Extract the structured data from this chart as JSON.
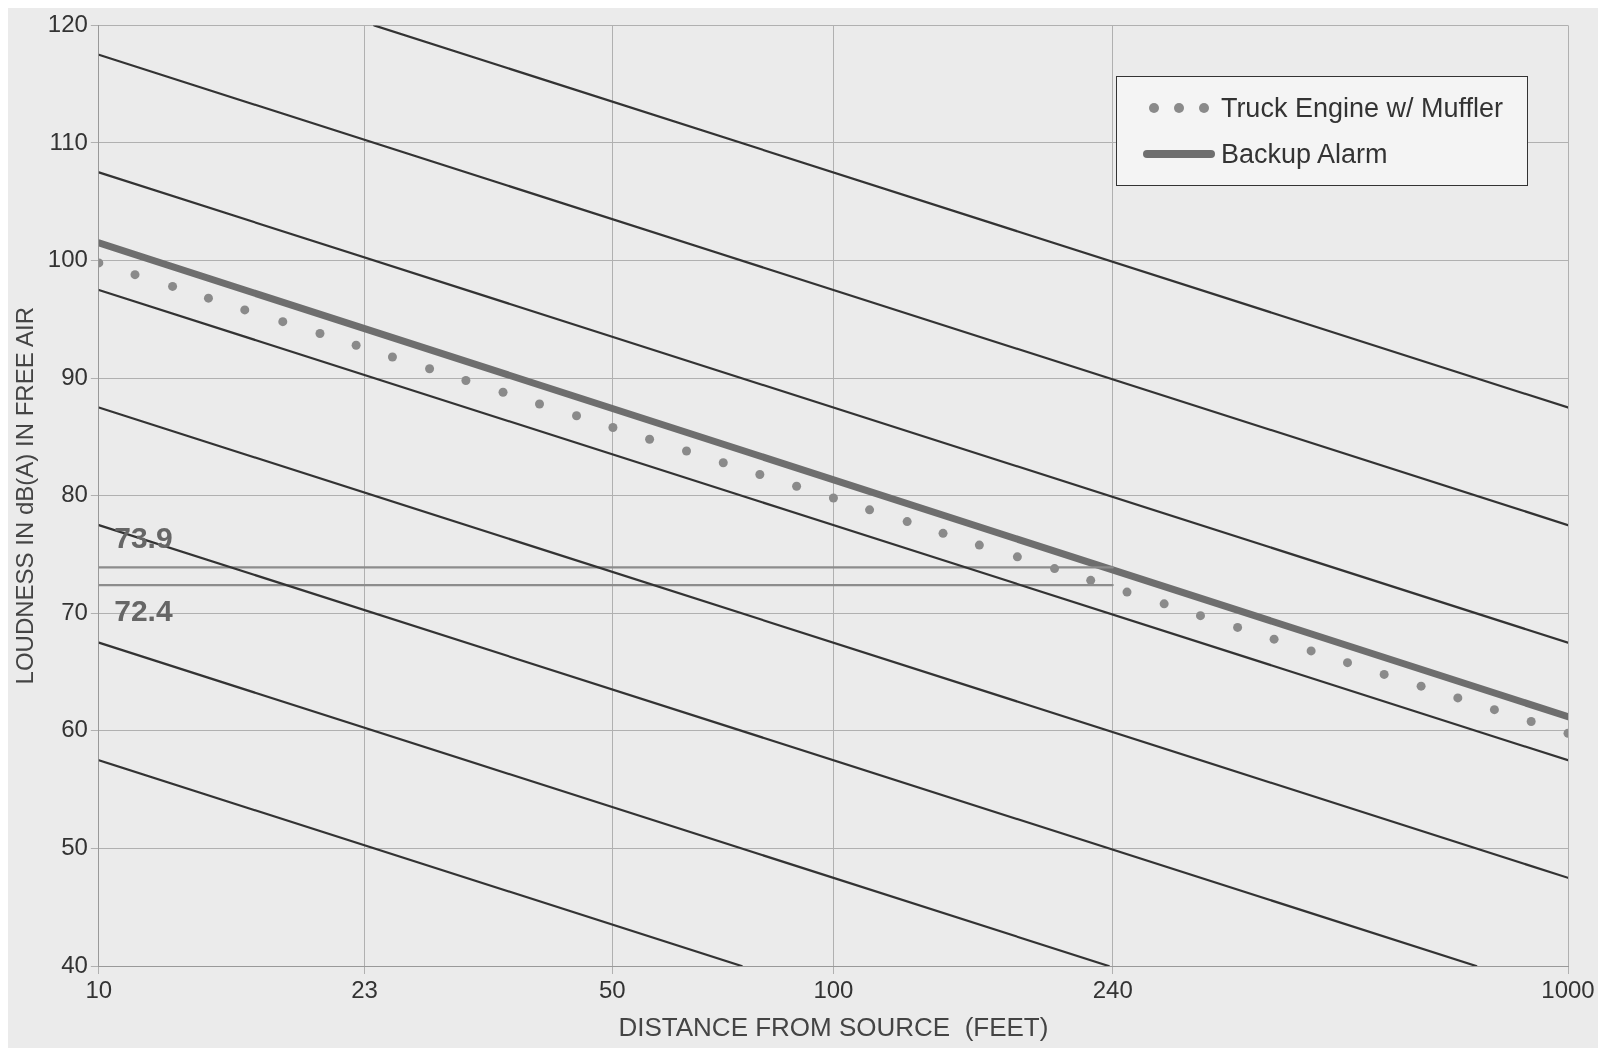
{
  "chart_data": {
    "type": "line",
    "xlabel": "DISTANCE FROM SOURCE  (FEET)",
    "ylabel": "LOUDNESS IN dB(A) IN FREE AIR",
    "log": "x",
    "grid": true,
    "legend": "top right",
    "xlim": [
      10,
      1000
    ],
    "xticks": [
      10,
      23,
      50,
      100,
      240,
      1000
    ],
    "ylim": [
      40,
      120
    ],
    "yticks": [
      40,
      50,
      60,
      70,
      80,
      90,
      100,
      110,
      120
    ],
    "series": [
      {
        "type": "line",
        "color": "#333333",
        "x": [
          23.7,
          1000
        ],
        "values": [
          120,
          87.5
        ]
      },
      {
        "type": "line",
        "color": "#333333",
        "x": [
          10,
          1000
        ],
        "values": [
          117.5,
          77.5
        ]
      },
      {
        "type": "line",
        "color": "#333333",
        "x": [
          10,
          1000
        ],
        "values": [
          107.5,
          67.5
        ]
      },
      {
        "type": "line",
        "color": "#333333",
        "x": [
          10,
          1000
        ],
        "values": [
          97.5,
          57.5
        ]
      },
      {
        "type": "line",
        "color": "#333333",
        "x": [
          10,
          1000
        ],
        "values": [
          87.5,
          47.5
        ]
      },
      {
        "type": "line",
        "color": "#333333",
        "x": [
          10,
          750
        ],
        "values": [
          77.5,
          40
        ]
      },
      {
        "type": "line",
        "color": "#333333",
        "x": [
          10,
          237
        ],
        "values": [
          67.5,
          40
        ]
      },
      {
        "type": "line",
        "color": "#333333",
        "x": [
          10,
          75
        ],
        "values": [
          57.5,
          40
        ]
      },
      {
        "type": "line",
        "color": "#8c8c8c",
        "x": [
          10,
          240
        ],
        "values": [
          73.9,
          73.9
        ]
      },
      {
        "type": "line",
        "color": "#8c8c8c",
        "x": [
          10,
          240
        ],
        "values": [
          72.4,
          72.4
        ]
      },
      {
        "type": "line",
        "name": "Backup Alarm",
        "color": "#6e6e6e",
        "x": [
          10,
          1000
        ],
        "values": [
          101.5,
          61.2
        ]
      },
      {
        "type": "scatter",
        "name": "Truck Engine w/ Muffler",
        "color": "#8a8a8a",
        "marker": "circle",
        "x": [
          10,
          11.2,
          12.6,
          14.1,
          15.8,
          17.8,
          20,
          22.4,
          25.1,
          28.2,
          31.6,
          35.5,
          39.8,
          44.7,
          50.1,
          56.2,
          63.1,
          70.8,
          79.4,
          89.1,
          100,
          112,
          126,
          141,
          158,
          178,
          200,
          224,
          251,
          282,
          316,
          355,
          398,
          447,
          501,
          562,
          631,
          708,
          794,
          891,
          1000
        ],
        "values": [
          99.8,
          98.8,
          97.8,
          96.8,
          95.8,
          94.8,
          93.8,
          92.8,
          91.8,
          90.8,
          89.8,
          88.8,
          87.8,
          86.8,
          85.8,
          84.8,
          83.8,
          82.8,
          81.8,
          80.8,
          79.8,
          78.8,
          77.8,
          76.8,
          75.8,
          74.8,
          73.8,
          72.8,
          71.8,
          70.8,
          69.8,
          68.8,
          67.8,
          66.8,
          65.8,
          64.8,
          63.8,
          62.8,
          61.8,
          60.8,
          59.8
        ]
      }
    ],
    "annotations": [
      {
        "text": "73.9",
        "x": 11.5,
        "y": 73.9
      },
      {
        "text": "72.4",
        "x": 11.5,
        "y": 72.4
      }
    ]
  }
}
